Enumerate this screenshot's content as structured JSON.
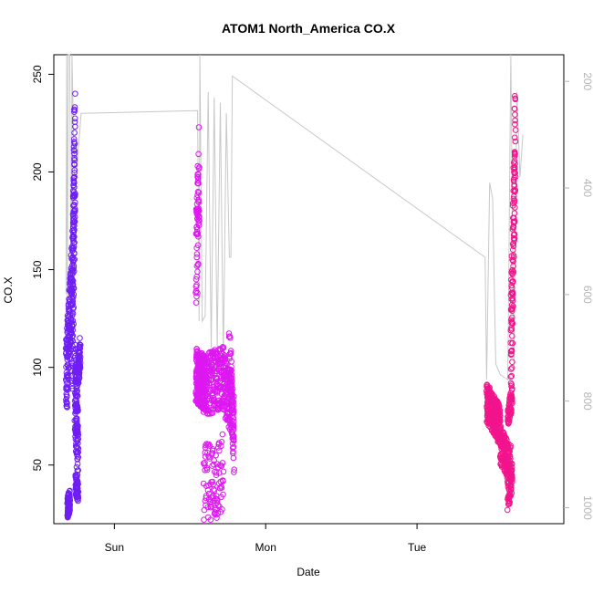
{
  "chart_data": {
    "type": "scatter",
    "title": "ATOM1 North_America CO.X",
    "xlabel": "Date",
    "ylabel": "CO.X",
    "x_ticks": [
      {
        "label": "Sun",
        "day": 1.0
      },
      {
        "label": "Mon",
        "day": 2.0
      },
      {
        "label": "Tue",
        "day": 3.0
      }
    ],
    "y_ticks": [
      50,
      100,
      150,
      200,
      250
    ],
    "ylim": [
      20,
      260
    ],
    "xlim_days": [
      0.6,
      3.97
    ],
    "right_axis": {
      "ticks": [
        200,
        400,
        600,
        800,
        1000
      ],
      "range": [
        1030,
        150
      ],
      "color": "#b4b4b4"
    },
    "grid": false,
    "series": [
      {
        "color": "#6f1ef5",
        "segments": [
          {
            "t0": 0.68,
            "t1": 0.72,
            "n": 160,
            "y0": 92,
            "y1": 140,
            "jit": 22
          },
          {
            "t0": 0.69,
            "t1": 0.705,
            "n": 80,
            "y0": 28,
            "y1": 32,
            "jit": 6
          },
          {
            "t0": 0.72,
            "t1": 0.74,
            "n": 150,
            "y0": 120,
            "y1": 215,
            "jit": 35
          },
          {
            "t0": 0.74,
            "t1": 0.76,
            "n": 130,
            "y0": 95,
            "y1": 60,
            "jit": 25
          },
          {
            "t0": 0.745,
            "t1": 0.76,
            "n": 50,
            "y0": 40,
            "y1": 36,
            "jit": 6
          },
          {
            "t0": 0.76,
            "t1": 0.775,
            "n": 60,
            "y0": 98,
            "y1": 108,
            "jit": 8
          }
        ]
      },
      {
        "color": "#dd18f0",
        "segments": [
          {
            "t0": 1.54,
            "t1": 1.6,
            "n": 260,
            "y0": 96,
            "y1": 92,
            "jit": 14
          },
          {
            "t0": 1.54,
            "t1": 1.56,
            "n": 70,
            "y0": 150,
            "y1": 195,
            "jit": 30
          },
          {
            "t0": 1.58,
            "t1": 1.72,
            "n": 220,
            "y0": 90,
            "y1": 95,
            "jit": 16
          },
          {
            "t0": 1.59,
            "t1": 1.72,
            "n": 100,
            "y0": 38,
            "y1": 45,
            "jit": 22
          },
          {
            "t0": 1.72,
            "t1": 1.79,
            "n": 150,
            "y0": 92,
            "y1": 78,
            "jit": 16
          },
          {
            "t0": 1.76,
            "t1": 1.79,
            "n": 50,
            "y0": 110,
            "y1": 60,
            "jit": 15
          }
        ]
      },
      {
        "color": "#f2148c",
        "segments": [
          {
            "t0": 3.46,
            "t1": 3.55,
            "n": 300,
            "y0": 82,
            "y1": 70,
            "jit": 10
          },
          {
            "t0": 3.55,
            "t1": 3.62,
            "n": 160,
            "y0": 60,
            "y1": 50,
            "jit": 10
          },
          {
            "t0": 3.6,
            "t1": 3.63,
            "n": 70,
            "y0": 35,
            "y1": 45,
            "jit": 8
          },
          {
            "t0": 3.62,
            "t1": 3.65,
            "n": 130,
            "y0": 100,
            "y1": 225,
            "jit": 28
          },
          {
            "t0": 3.6,
            "t1": 3.63,
            "n": 60,
            "y0": 75,
            "y1": 85,
            "jit": 6
          }
        ]
      }
    ],
    "line_series": {
      "color": "#c8c8c8",
      "points": [
        [
          0.68,
          600
        ],
        [
          0.685,
          150
        ],
        [
          0.69,
          650
        ],
        [
          0.695,
          150
        ],
        [
          0.705,
          150
        ],
        [
          0.715,
          700
        ],
        [
          0.72,
          150
        ],
        [
          0.73,
          300
        ],
        [
          0.74,
          420
        ],
        [
          0.76,
          330
        ],
        [
          0.77,
          300
        ],
        [
          0.78,
          260
        ],
        [
          1.55,
          255
        ],
        [
          1.56,
          650
        ],
        [
          1.565,
          150
        ],
        [
          1.58,
          650
        ],
        [
          1.6,
          640
        ],
        [
          1.62,
          220
        ],
        [
          1.64,
          700
        ],
        [
          1.66,
          230
        ],
        [
          1.68,
          700
        ],
        [
          1.7,
          240
        ],
        [
          1.72,
          720
        ],
        [
          1.74,
          260
        ],
        [
          1.76,
          530
        ],
        [
          1.77,
          530
        ],
        [
          1.78,
          190
        ],
        [
          3.45,
          530
        ],
        [
          3.46,
          760
        ],
        [
          3.48,
          390
        ],
        [
          3.5,
          420
        ],
        [
          3.52,
          730
        ],
        [
          3.55,
          750
        ],
        [
          3.6,
          760
        ],
        [
          3.62,
          150
        ],
        [
          3.64,
          740
        ],
        [
          3.66,
          220
        ],
        [
          3.68,
          380
        ],
        [
          3.7,
          300
        ]
      ]
    }
  }
}
